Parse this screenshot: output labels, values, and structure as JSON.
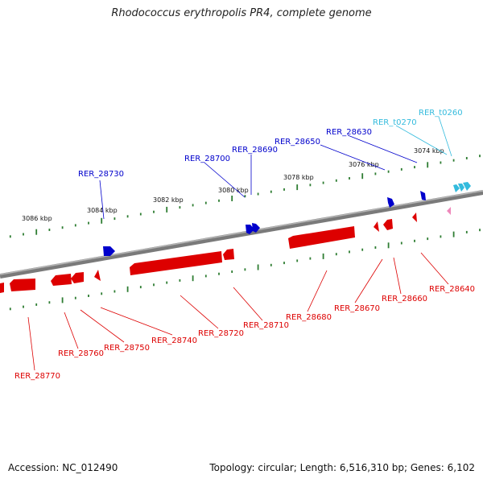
{
  "title": "Rhodococcus erythropolis PR4, complete genome",
  "footer": {
    "accession": "Accession: NC_012490",
    "summary": "Topology: circular; Length: 6,516,310 bp; Genes: 6,102"
  },
  "colors": {
    "backbone": "#808080",
    "tick": "#2e7d32",
    "plus_gene": "#0000cc",
    "minus_gene": "#dd0000",
    "trna": "#33bbdd",
    "pink": "#ee88bb"
  },
  "scale_labels": [
    "3074 kbp",
    "3076 kbp",
    "3078 kbp",
    "3080 kbp",
    "3082 kbp",
    "3084 kbp",
    "3086 kbp"
  ],
  "genes_top": [
    "RER_t0260",
    "RER_t0270",
    "RER_28630",
    "RER_28650",
    "RER_28690",
    "RER_28700",
    "RER_28730"
  ],
  "genes_bottom": [
    "RER_28640",
    "RER_28660",
    "RER_28670",
    "RER_28680",
    "RER_28710",
    "RER_28720",
    "RER_28740",
    "RER_28750",
    "RER_28760",
    "RER_28770"
  ]
}
